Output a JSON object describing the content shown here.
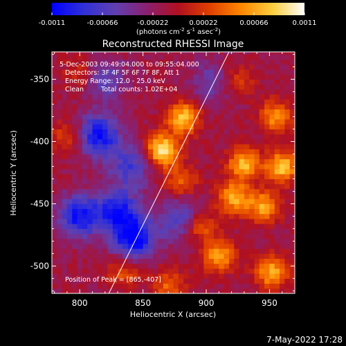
{
  "colorbar": {
    "tick_labels": [
      "-0.0011",
      "-0.00066",
      "-0.00022",
      "0.00022",
      "0.00066",
      "0.0011"
    ],
    "tick_values": [
      -0.0011,
      -0.00066,
      -0.00022,
      0.00022,
      0.00066,
      0.0011
    ],
    "range": [
      -0.0011,
      0.0011
    ],
    "unit_label": "(photons cm",
    "unit_sup1": "-2",
    "unit_mid": " s",
    "unit_sup2": "-1",
    "unit_mid2": " asec",
    "unit_sup3": "-2",
    "unit_end": ")",
    "colors": [
      "#0000ff",
      "#3030d8",
      "#6040b0",
      "#8a2070",
      "#b01020",
      "#e04000",
      "#ff8800",
      "#ffd040",
      "#ffffff"
    ]
  },
  "chart_data": {
    "type": "heatmap",
    "title": "Reconstructed RHESSI Image",
    "xlabel": "Heliocentric X (arcsec)",
    "ylabel": "Heliocentric Y (arcsec)",
    "xlim": [
      778,
      970
    ],
    "ylim": [
      -522,
      -328
    ],
    "x_ticks": [
      800,
      850,
      900,
      950
    ],
    "y_ticks": [
      -350,
      -400,
      -450,
      -500
    ],
    "x_tick_labels": [
      "800",
      "850",
      "900",
      "950"
    ],
    "y_tick_labels": [
      "-350",
      "-400",
      "-450",
      "-500"
    ],
    "limb_line": [
      [
        823,
        -522
      ],
      [
        918,
        -328
      ]
    ],
    "hot_spots": [
      {
        "x": 865,
        "y": -407,
        "value": 0.0011
      },
      {
        "x": 882,
        "y": -381,
        "value": 0.0009
      },
      {
        "x": 955,
        "y": -380,
        "value": 0.0007
      },
      {
        "x": 930,
        "y": -418,
        "value": 0.00085
      },
      {
        "x": 960,
        "y": -420,
        "value": 0.0009
      },
      {
        "x": 922,
        "y": -445,
        "value": 0.0008
      },
      {
        "x": 945,
        "y": -452,
        "value": 0.00075
      },
      {
        "x": 895,
        "y": -468,
        "value": 0.0006
      },
      {
        "x": 910,
        "y": -492,
        "value": 0.00075
      },
      {
        "x": 952,
        "y": -505,
        "value": 0.0008
      },
      {
        "x": 880,
        "y": -432,
        "value": 0.0005
      },
      {
        "x": 835,
        "y": -505,
        "value": 0.00045
      },
      {
        "x": 790,
        "y": -395,
        "value": 0.0004
      },
      {
        "x": 800,
        "y": -345,
        "value": 0.00035
      },
      {
        "x": 925,
        "y": -350,
        "value": 0.0004
      },
      {
        "x": 870,
        "y": -515,
        "value": 0.0005
      }
    ],
    "cold_spots": [
      {
        "x": 815,
        "y": -395,
        "value": -0.0009
      },
      {
        "x": 800,
        "y": -460,
        "value": -0.0009
      },
      {
        "x": 830,
        "y": -455,
        "value": -0.0008
      },
      {
        "x": 843,
        "y": -478,
        "value": -0.001
      },
      {
        "x": 840,
        "y": -420,
        "value": -0.0006
      },
      {
        "x": 820,
        "y": -350,
        "value": -0.0005
      },
      {
        "x": 905,
        "y": -352,
        "value": -0.0004
      },
      {
        "x": 880,
        "y": -462,
        "value": -0.0006
      }
    ],
    "annotations": {
      "time_range": "5-Dec-2003 09:49:04.000 to 09:55:04.000",
      "detectors": "Detectors: 3F 4F 5F 6F 7F 8F, Att 1",
      "energy": "Energy Range: 12.0 - 25.0 keV",
      "clean": "Clean",
      "counts": "Total counts: 1.02E+04",
      "peak": "Position of Peak = [865,-407]"
    }
  },
  "footer": {
    "date": "7-May-2022 17:28"
  }
}
